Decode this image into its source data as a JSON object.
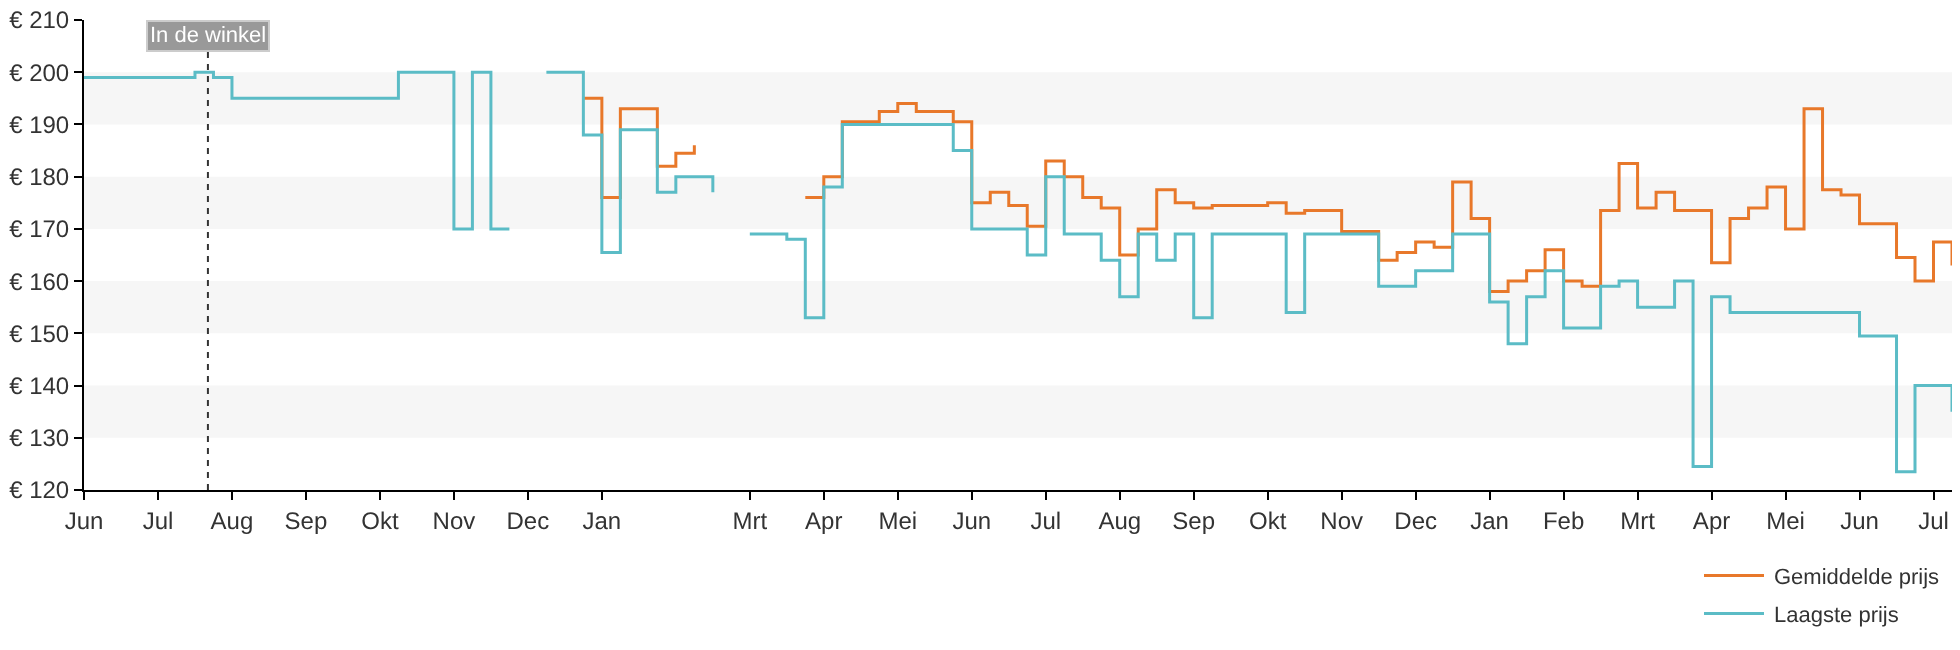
{
  "chart_data": {
    "type": "step",
    "ylim": [
      120,
      210
    ],
    "yticks": [
      {
        "value": 120,
        "label": "€ 120"
      },
      {
        "value": 130,
        "label": "€ 130"
      },
      {
        "value": 140,
        "label": "€ 140"
      },
      {
        "value": 150,
        "label": "€ 150"
      },
      {
        "value": 160,
        "label": "€ 160"
      },
      {
        "value": 170,
        "label": "€ 170"
      },
      {
        "value": 180,
        "label": "€ 180"
      },
      {
        "value": 190,
        "label": "€ 190"
      },
      {
        "value": 200,
        "label": "€ 200"
      },
      {
        "value": 210,
        "label": "€ 210"
      }
    ],
    "categories": [
      "Jun",
      null,
      null,
      null,
      "Jul",
      null,
      null,
      null,
      "Aug",
      null,
      null,
      null,
      "Sep",
      null,
      null,
      null,
      "Okt",
      null,
      null,
      null,
      "Nov",
      null,
      null,
      null,
      "Dec",
      null,
      null,
      null,
      "Jan",
      null,
      null,
      null,
      null,
      null,
      null,
      null,
      "Mrt",
      null,
      null,
      null,
      "Apr",
      null,
      null,
      null,
      "Mei",
      null,
      null,
      null,
      "Jun",
      null,
      null,
      null,
      "Jul",
      null,
      null,
      null,
      "Aug",
      null,
      null,
      null,
      "Sep",
      null,
      null,
      null,
      "Okt",
      null,
      null,
      null,
      "Nov",
      null,
      null,
      null,
      "Dec",
      null,
      null,
      null,
      "Jan",
      null,
      null,
      null,
      "Feb",
      null,
      null,
      null,
      "Mrt",
      null,
      null,
      null,
      "Apr",
      null,
      null,
      null,
      "Mei",
      null,
      null,
      null,
      "Jun",
      null,
      null,
      null,
      "Jul",
      null
    ],
    "legend": "bottom right",
    "annotations": [
      "In de winkel"
    ],
    "bands": [
      {
        "axis": "y",
        "from": 130,
        "to": 140,
        "color": "#f6f6f6"
      },
      {
        "axis": "y",
        "from": 150,
        "to": 160,
        "color": "#f6f6f6"
      },
      {
        "axis": "y",
        "from": 170,
        "to": 180,
        "color": "#f6f6f6"
      },
      {
        "axis": "y",
        "from": 190,
        "to": 200,
        "color": "#f6f6f6"
      }
    ],
    "series": [
      {
        "name": "Gemiddelde prijs",
        "color": "#e8782a",
        "values": [
          null,
          null,
          null,
          null,
          null,
          null,
          null,
          null,
          null,
          null,
          null,
          null,
          null,
          null,
          null,
          null,
          null,
          null,
          null,
          null,
          null,
          null,
          null,
          null,
          null,
          null,
          null,
          195,
          176,
          193,
          193,
          182,
          184.5,
          186,
          null,
          null,
          null,
          null,
          null,
          176,
          180,
          190.5,
          190.5,
          192.5,
          194,
          192.5,
          192.5,
          190.5,
          175,
          177,
          174.5,
          170.5,
          183,
          180,
          176,
          174,
          165,
          170,
          177.5,
          175,
          174,
          174.5,
          174.5,
          174.5,
          175,
          173,
          173.5,
          173.5,
          169.5,
          169.5,
          164,
          165.5,
          167.5,
          166.5,
          179,
          172,
          158,
          160,
          162,
          166,
          160,
          159,
          173.5,
          182.5,
          174,
          177,
          173.5,
          173.5,
          163.5,
          172,
          174,
          178,
          170,
          193,
          177.5,
          176.5,
          171,
          171,
          164.5,
          160,
          167.5,
          163
        ]
      },
      {
        "name": "Laagste prijs",
        "color": "#5bbcc6",
        "values": [
          199,
          199,
          199,
          199,
          199,
          199,
          200,
          199,
          195,
          195,
          195,
          195,
          195,
          195,
          195,
          195,
          195,
          200,
          200,
          200,
          170,
          200,
          170,
          170,
          null,
          200,
          200,
          188,
          165.5,
          189,
          189,
          177,
          180,
          180,
          177,
          null,
          169,
          169,
          168,
          153,
          178,
          190,
          190,
          190,
          190,
          190,
          190,
          185,
          170,
          170,
          170,
          165,
          180,
          169,
          169,
          164,
          157,
          169,
          164,
          169,
          153,
          169,
          169,
          169,
          169,
          154,
          169,
          169,
          169,
          169,
          159,
          159,
          162,
          162,
          169,
          169,
          156,
          148,
          157,
          162,
          151,
          151,
          159,
          160,
          155,
          155,
          160,
          124.5,
          157,
          154,
          154,
          154,
          154,
          154,
          154,
          154,
          149.5,
          149.5,
          123.5,
          140,
          140,
          135
        ]
      }
    ]
  }
}
